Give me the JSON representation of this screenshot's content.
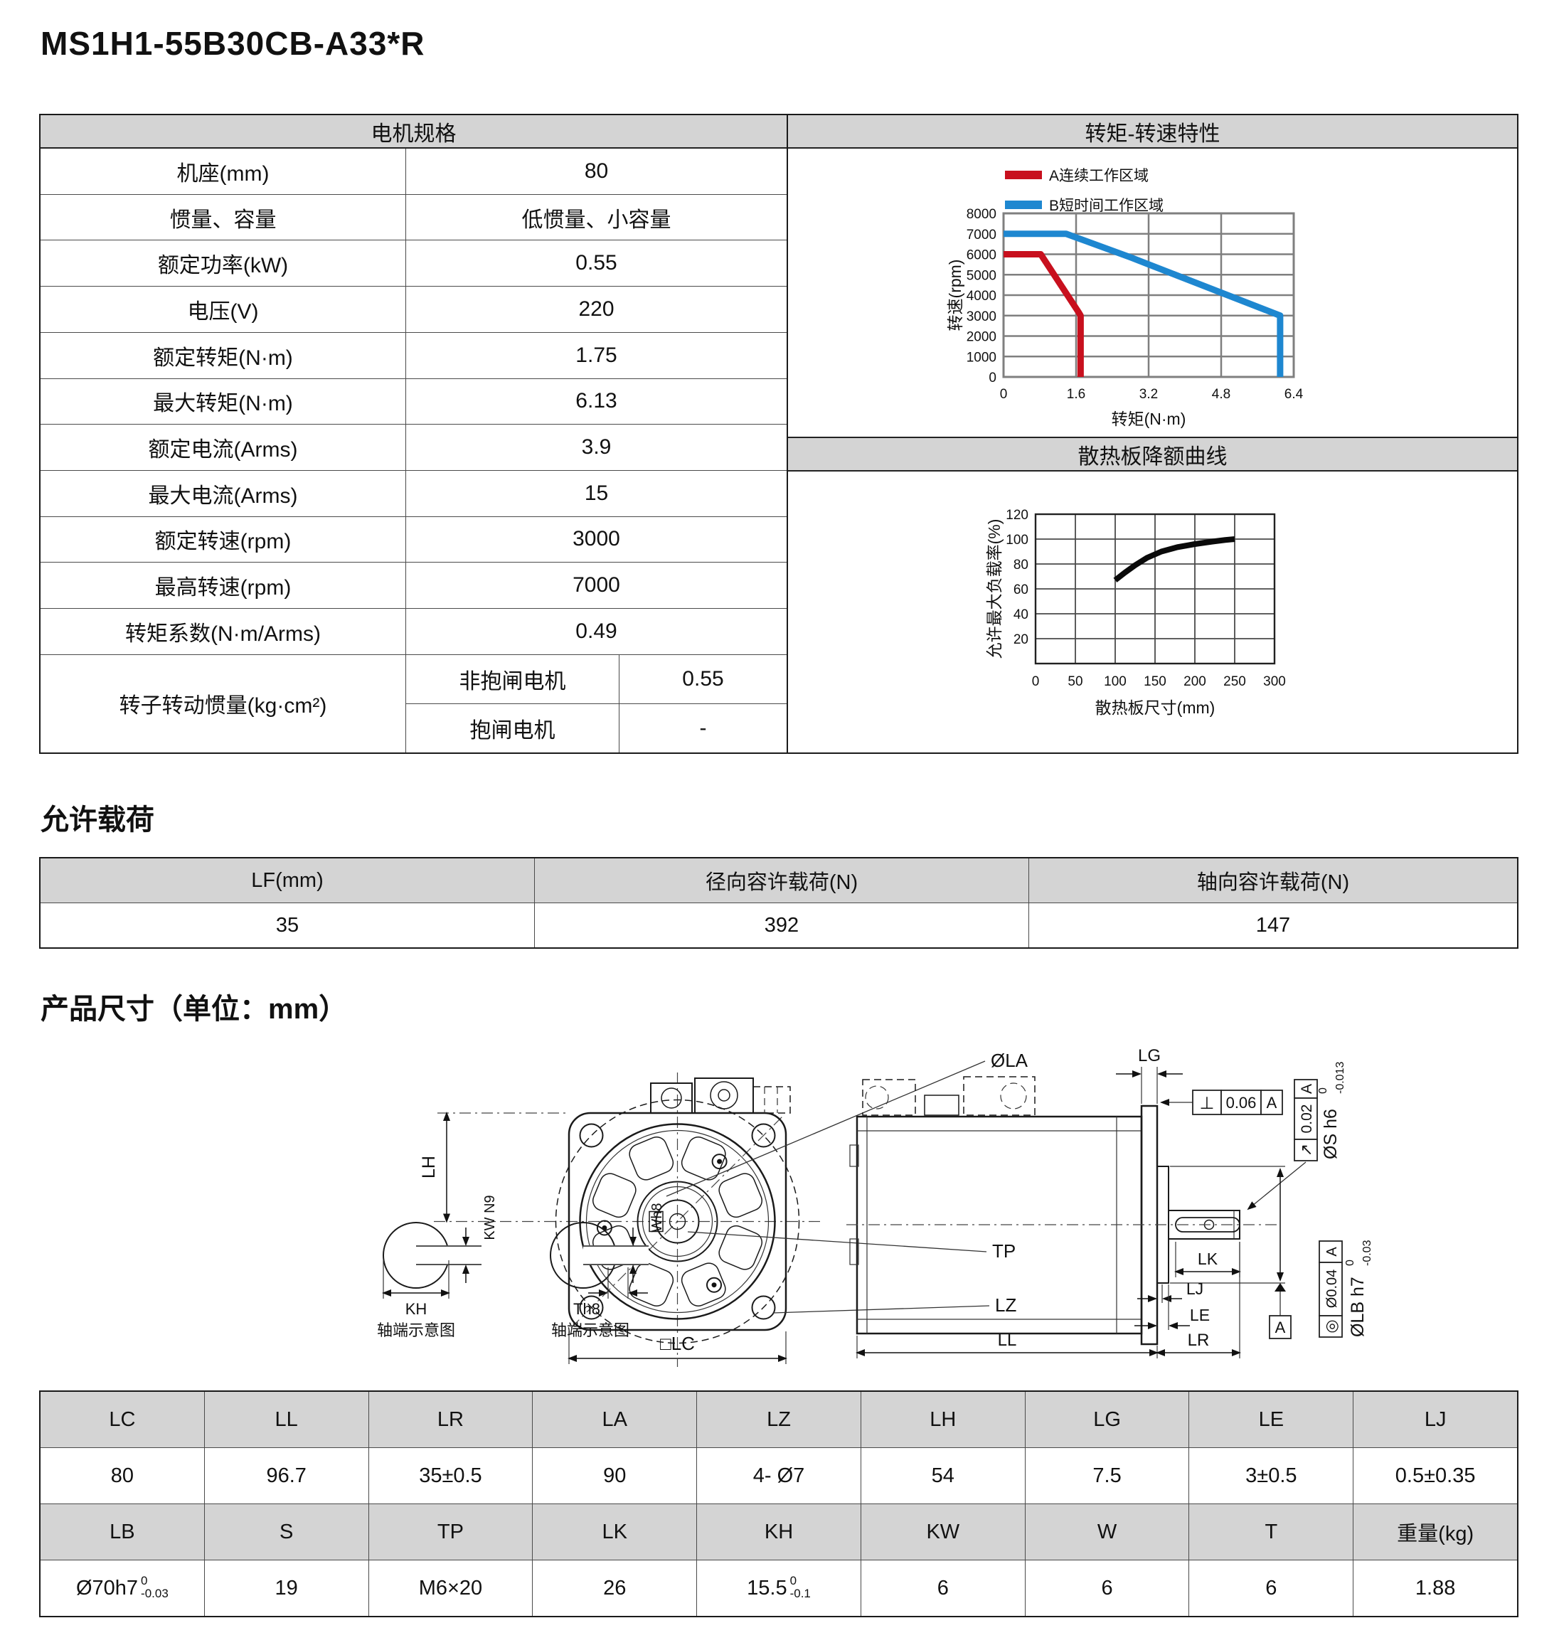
{
  "page": {
    "title": "MS1H1-55B30CB-A33*R"
  },
  "sections": {
    "load_title": "允许载荷",
    "dim_title": "产品尺寸（单位：mm）"
  },
  "colors": {
    "accent_red": "#c8101e",
    "accent_blue": "#1e87d0",
    "header_gray": "#d4d4d4"
  },
  "spec_table": {
    "header": "电机规格",
    "rows": [
      {
        "label": "机座(mm)",
        "value": "80"
      },
      {
        "label": "惯量、容量",
        "value": "低惯量、小容量"
      },
      {
        "label": "额定功率(kW)",
        "value": "0.55"
      },
      {
        "label": "电压(V)",
        "value": "220"
      },
      {
        "label": "额定转矩(N·m)",
        "value": "1.75"
      },
      {
        "label": "最大转矩(N·m)",
        "value": "6.13"
      },
      {
        "label": "额定电流(Arms)",
        "value": "3.9"
      },
      {
        "label": "最大电流(Arms)",
        "value": "15"
      },
      {
        "label": "额定转速(rpm)",
        "value": "3000"
      },
      {
        "label": "最高转速(rpm)",
        "value": "7000"
      },
      {
        "label": "转矩系数(N·m/Arms)",
        "value": "0.49"
      }
    ],
    "inertia_label": "转子转动惯量(kg·cm²)",
    "inertia_rows": [
      {
        "label": "非抱闸电机",
        "value": "0.55"
      },
      {
        "label": "抱闸电机",
        "value": "-"
      }
    ]
  },
  "chart_data": [
    {
      "id": "torque_speed",
      "type": "line",
      "panel_title": "转矩-转速特性",
      "xlabel": "转矩(N·m)",
      "ylabel": "转速(rpm)",
      "xlim": [
        0,
        6.4
      ],
      "ylim": [
        0,
        8000
      ],
      "xticks": [
        0,
        1.6,
        3.2,
        4.8,
        6.4
      ],
      "yticks": [
        0,
        1000,
        2000,
        3000,
        4000,
        5000,
        6000,
        7000,
        8000
      ],
      "grid": true,
      "legend_position": "top-left",
      "legend": [
        {
          "name": "A连续工作区域",
          "color": "#c8101e"
        },
        {
          "name": "B短时间工作区域",
          "color": "#1e87d0"
        }
      ],
      "series": [
        {
          "name": "A连续工作区域",
          "color": "#c8101e",
          "points": [
            [
              0,
              6000
            ],
            [
              0.82,
              6000
            ],
            [
              1.66,
              3150
            ],
            [
              1.7,
              3000
            ],
            [
              1.7,
              0
            ]
          ]
        },
        {
          "name": "B短时间工作区域",
          "color": "#1e87d0",
          "points": [
            [
              0,
              7000
            ],
            [
              1.38,
              7000
            ],
            [
              2.8,
              5850
            ],
            [
              6.1,
              3000
            ],
            [
              6.1,
              0
            ]
          ]
        }
      ]
    },
    {
      "id": "derating",
      "type": "line",
      "panel_title": "散热板降额曲线",
      "xlabel": "散热板尺寸(mm)",
      "ylabel": "允许最大负载率(%)",
      "xlim": [
        0,
        300
      ],
      "ylim": [
        0,
        120
      ],
      "xticks": [
        0,
        50,
        100,
        150,
        200,
        250,
        300
      ],
      "yticks": [
        20,
        40,
        60,
        80,
        100,
        120
      ],
      "grid": true,
      "series": [
        {
          "name": "降额曲线",
          "color": "#0a0a0a",
          "points": [
            [
              100,
              67
            ],
            [
              112,
              73
            ],
            [
              125,
              79
            ],
            [
              140,
              85
            ],
            [
              158,
              90
            ],
            [
              178,
              93.5
            ],
            [
              200,
              96
            ],
            [
              222,
              98
            ],
            [
              238,
              99.3
            ],
            [
              250,
              100
            ]
          ]
        }
      ]
    }
  ],
  "load_table": {
    "headers": [
      "LF(mm)",
      "径向容许载荷(N)",
      "轴向容许载荷(N)"
    ],
    "values": [
      "35",
      "392",
      "147"
    ]
  },
  "drawing": {
    "front": {
      "lh": "LH",
      "lc": "□LC",
      "ola": "ØLA",
      "tp": "TP",
      "lz": "LZ",
      "kw": "KW N9",
      "kh": "KH",
      "wh": "Wh8",
      "th": "Th8",
      "caption1": "轴端示意图",
      "caption2": "轴端示意图"
    },
    "side": {
      "lg": "LG",
      "ll": "LL",
      "lr": "LR",
      "lj": "LJ",
      "le": "LE",
      "lk": "LK",
      "perp_sym": "⊥",
      "perp_val": "0.06",
      "perp_datum": "A",
      "runout1_sym": "↗",
      "runout1_val": "0.02",
      "runout1_datum": "A",
      "s_text": "ØS h6",
      "s_sup": "0",
      "s_sub": "-0.013",
      "runout2_sym": "◎",
      "runout2_val": "Ø0.04",
      "runout2_datum": "A",
      "lb_text": "ØLB h7",
      "lb_sup": "0",
      "lb_sub": "-0.03",
      "datum": "A"
    }
  },
  "dim_table": {
    "headers1": [
      "LC",
      "LL",
      "LR",
      "LA",
      "LZ",
      "LH",
      "LG",
      "LE",
      "LJ"
    ],
    "values1": [
      "80",
      "96.7",
      "35±0.5",
      "90",
      "4- Ø7",
      "54",
      "7.5",
      "3±0.5",
      "0.5±0.35"
    ],
    "headers2": [
      "LB",
      "S",
      "TP",
      "LK",
      "KH",
      "KW",
      "W",
      "T",
      "重量(kg)"
    ],
    "values2": [
      "",
      "19",
      "M6×20",
      "26",
      "",
      "6",
      "6",
      "6",
      "1.88"
    ],
    "lb": {
      "base": "Ø70h7",
      "sup": "0",
      "sub": "-0.03"
    },
    "kh": {
      "base": "15.5",
      "sup": "0",
      "sub": "-0.1"
    }
  }
}
